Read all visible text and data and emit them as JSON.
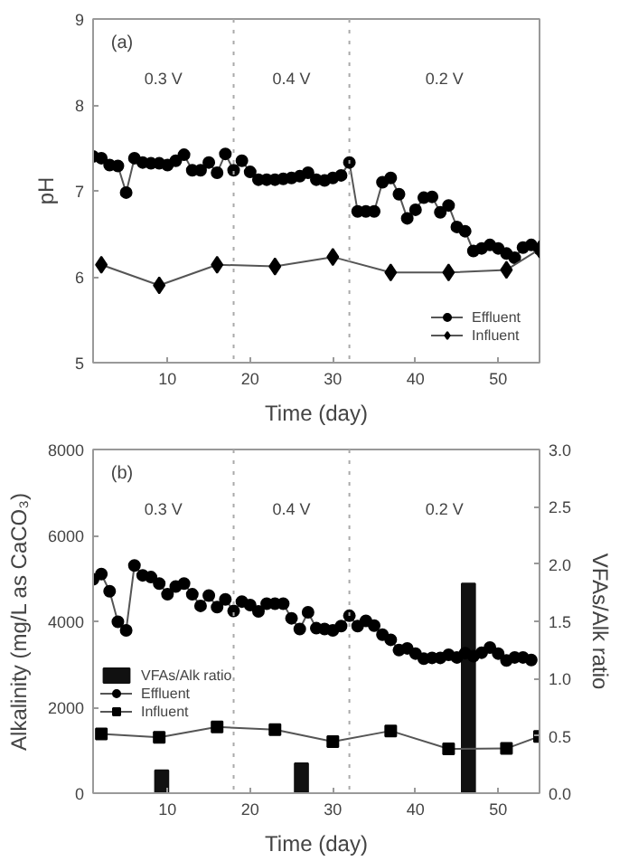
{
  "chart_data": [
    {
      "type": "line",
      "xlabel": "Time (day)",
      "ylabel": "pH",
      "xlim": [
        1,
        55
      ],
      "xticks": [
        10,
        20,
        30,
        40,
        50
      ],
      "ylim": [
        5,
        9
      ],
      "yticks": [
        5,
        6,
        7,
        8,
        9
      ],
      "grid": false,
      "legend": "bottom right",
      "series": [
        {
          "name": "Effluent",
          "color": "#000000",
          "marker": "circle",
          "x": [
            1,
            2,
            3,
            4,
            5,
            6,
            7,
            8,
            9,
            10,
            11,
            12,
            13,
            14,
            15,
            16,
            17,
            18,
            19,
            20,
            21,
            22,
            23,
            24,
            25,
            26,
            27,
            28,
            29,
            30,
            31,
            32,
            33,
            34,
            35,
            36,
            37,
            38,
            39,
            40,
            41,
            42,
            43,
            44,
            45,
            46,
            47,
            48,
            49,
            50,
            51,
            52,
            53,
            54,
            55
          ],
          "values": [
            7.4,
            7.38,
            7.3,
            7.29,
            6.98,
            7.38,
            7.33,
            7.32,
            7.32,
            7.3,
            7.35,
            7.42,
            7.24,
            7.24,
            7.33,
            7.21,
            7.43,
            7.24,
            7.35,
            7.22,
            7.13,
            7.13,
            7.13,
            7.14,
            7.15,
            7.17,
            7.21,
            7.13,
            7.12,
            7.15,
            7.18,
            7.33,
            6.76,
            6.76,
            6.76,
            7.1,
            7.15,
            6.96,
            6.68,
            6.78,
            6.92,
            6.93,
            6.75,
            6.83,
            6.58,
            6.53,
            6.3,
            6.33,
            6.37,
            6.33,
            6.27,
            6.22,
            6.34,
            6.37,
            6.32
          ]
        },
        {
          "name": "Influent",
          "color": "#000000",
          "marker": "diamond",
          "x": [
            2,
            9,
            16,
            23,
            30,
            37,
            44,
            51,
            55
          ],
          "values": [
            6.14,
            5.9,
            6.14,
            6.12,
            6.23,
            6.05,
            6.05,
            6.08,
            6.32
          ]
        }
      ],
      "ref_lines": [
        {
          "axis": "x",
          "value": 18,
          "color": "#aaaaaa",
          "line_style": "dotted"
        },
        {
          "axis": "x",
          "value": 32,
          "color": "#aaaaaa",
          "line_style": "dotted"
        }
      ],
      "annotations": [
        "(a)",
        "0.3 V",
        "0.4 V",
        "0.2 V"
      ]
    },
    {
      "type": "line",
      "xlabel": "Time (day)",
      "ylabel": "Alkalinity (mg/L as CaCO₃)",
      "y2label": "VFAs/Alk ratio",
      "xlim": [
        1,
        55
      ],
      "xticks": [
        10,
        20,
        30,
        40,
        50
      ],
      "ylim": [
        0,
        8000
      ],
      "yticks": [
        0,
        2000,
        4000,
        6000,
        8000
      ],
      "y2lim": [
        0,
        3
      ],
      "y2ticks": [
        {
          "value": 0,
          "label": "0.0"
        },
        {
          "value": 0.5,
          "label": "0.5"
        },
        {
          "value": 1,
          "label": "1.0"
        },
        {
          "value": 1.5,
          "label": "1.5"
        },
        {
          "value": 2,
          "label": "2.0"
        },
        {
          "value": 2.5,
          "label": "2.5"
        },
        {
          "value": 3,
          "label": "3.0"
        }
      ],
      "grid": false,
      "legend": "left",
      "series": [
        {
          "name": "VFAs/Alk ratio",
          "type": "bar",
          "axis": "y2",
          "color": "#111111",
          "x": [
            9.3,
            26.2,
            46.4
          ],
          "values": [
            0.2,
            0.26,
            1.83
          ]
        },
        {
          "name": "Effluent",
          "color": "#000000",
          "marker": "circle",
          "x": [
            1,
            2,
            3,
            4,
            5,
            6,
            7,
            8,
            9,
            10,
            11,
            12,
            13,
            14,
            15,
            16,
            17,
            18,
            19,
            20,
            21,
            22,
            23,
            24,
            25,
            26,
            27,
            28,
            29,
            30,
            31,
            32,
            33,
            34,
            35,
            36,
            37,
            38,
            39,
            40,
            41,
            42,
            43,
            44,
            45,
            46,
            47,
            48,
            49,
            50,
            51,
            52,
            53,
            54
          ],
          "values": [
            4980,
            5100,
            4700,
            3990,
            3790,
            5300,
            5070,
            5030,
            4880,
            4630,
            4810,
            4880,
            4630,
            4360,
            4600,
            4330,
            4510,
            4240,
            4460,
            4380,
            4230,
            4410,
            4410,
            4410,
            4070,
            3820,
            4210,
            3840,
            3820,
            3790,
            3890,
            4130,
            3890,
            4010,
            3900,
            3690,
            3570,
            3330,
            3370,
            3250,
            3130,
            3150,
            3150,
            3220,
            3160,
            3260,
            3190,
            3270,
            3390,
            3250,
            3090,
            3160,
            3160,
            3100
          ]
        },
        {
          "name": "Influent",
          "color": "#000000",
          "marker": "square",
          "x": [
            2,
            9,
            16,
            23,
            30,
            37,
            44,
            51,
            55
          ],
          "values": [
            1380,
            1300,
            1540,
            1480,
            1200,
            1450,
            1030,
            1040,
            1320
          ]
        }
      ],
      "ref_lines": [
        {
          "axis": "x",
          "value": 18,
          "color": "#aaaaaa",
          "line_style": "dotted"
        },
        {
          "axis": "x",
          "value": 32,
          "color": "#aaaaaa",
          "line_style": "dotted"
        }
      ],
      "annotations": [
        "(b)",
        "0.3 V",
        "0.4 V",
        "0.2 V"
      ]
    }
  ]
}
